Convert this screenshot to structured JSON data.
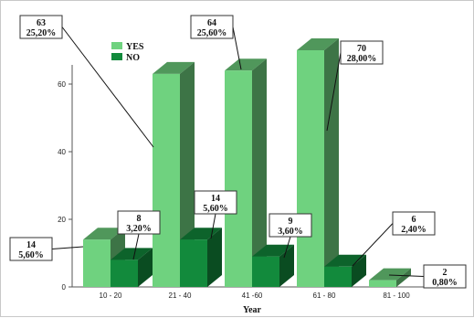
{
  "chart_data": {
    "type": "bar",
    "title": "",
    "xlabel": "Year",
    "ylabel": "",
    "ylim": [
      0,
      70
    ],
    "yticks": [
      0,
      20,
      40,
      60
    ],
    "categories": [
      "10 - 20",
      "21 - 40",
      "41 -60",
      "61 - 80",
      "81 - 100"
    ],
    "series": [
      {
        "name": "YES",
        "color": "#6fd27f",
        "values": [
          14,
          63,
          64,
          70,
          2
        ],
        "labels": [
          [
            "14",
            "5,60%"
          ],
          [
            "63",
            "25,20%"
          ],
          [
            "64",
            "25,60%"
          ],
          [
            "70",
            "28,00%"
          ],
          [
            "2",
            "0,80%"
          ]
        ]
      },
      {
        "name": "NO",
        "color": "#128a3c",
        "values": [
          8,
          14,
          9,
          6,
          0
        ],
        "labels": [
          [
            "8",
            "3,20%"
          ],
          [
            "14",
            "5,60%"
          ],
          [
            "9",
            "3,60%"
          ],
          [
            "6",
            "2,40%"
          ],
          null
        ]
      }
    ],
    "legend": "top-left",
    "grid": false,
    "style": "3d-bar"
  }
}
